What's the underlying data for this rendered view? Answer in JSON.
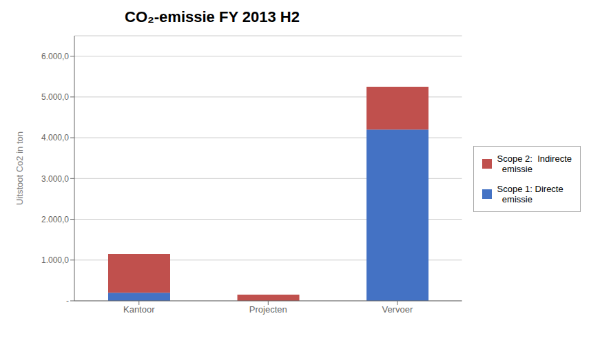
{
  "chart_data": {
    "type": "bar",
    "title": "CO₂-emissie FY 2013 H2",
    "ylabel": "Uitstoot Co2 in ton",
    "categories": [
      "Kantoor",
      "Projecten",
      "Vervoer"
    ],
    "series": [
      {
        "name": "Scope 1: Directe\n  emissie",
        "color": "#4472C4",
        "values": [
          200,
          0,
          4200
        ]
      },
      {
        "name": "Scope 2:  Indirecte\n  emissie",
        "color": "#C0504D",
        "values": [
          950,
          150,
          1050
        ]
      }
    ],
    "stacked": true,
    "ylim": [
      0,
      6500
    ],
    "yticks": [
      {
        "value": 0,
        "label": "-"
      },
      {
        "value": 1000,
        "label": "1.000,0"
      },
      {
        "value": 2000,
        "label": "2.000,0"
      },
      {
        "value": 3000,
        "label": "3.000,0"
      },
      {
        "value": 4000,
        "label": "4.000,0"
      },
      {
        "value": 5000,
        "label": "5.000,0"
      },
      {
        "value": 6000,
        "label": "6.000,0"
      }
    ],
    "grid": true,
    "legend": "right"
  }
}
